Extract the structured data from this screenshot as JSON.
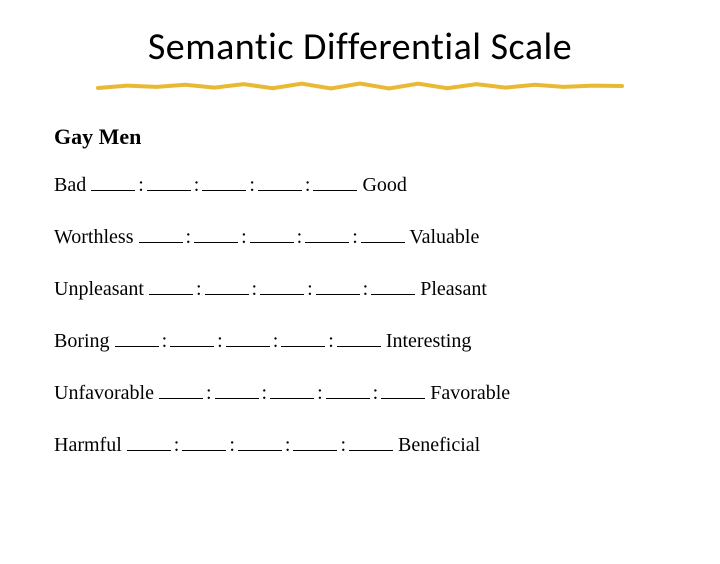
{
  "title": "Semantic Differential Scale",
  "subject": "Gay Men",
  "scales": [
    {
      "left": "Bad",
      "right": "Good"
    },
    {
      "left": "Worthless",
      "right": "Valuable"
    },
    {
      "left": "Unpleasant",
      "right": "Pleasant"
    },
    {
      "left": "Boring",
      "right": "Interesting"
    },
    {
      "left": "Unfavorable",
      "right": "Favorable"
    },
    {
      "left": "Harmful",
      "right": "Beneficial"
    }
  ],
  "blanks_per_row": 5,
  "separator": ":",
  "underline_color": "#e8b933",
  "underline_stroke": 4
}
